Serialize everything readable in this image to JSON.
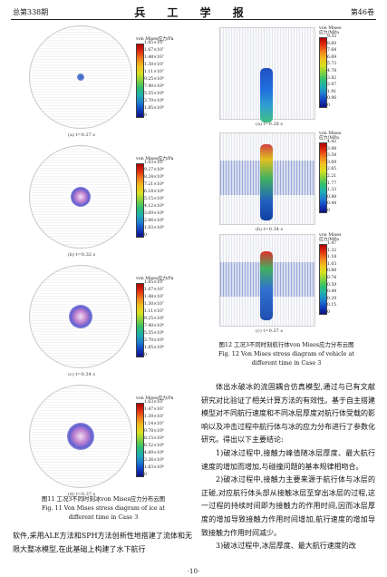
{
  "header": {
    "left": "总第338期",
    "center": "兵 工 学 报",
    "right": "第46卷"
  },
  "legend_title_left": "von Mises应力/Pa",
  "legend_title_right": "von Mises\n应力/MPa",
  "colors": {
    "scale": [
      "#b00000",
      "#e03010",
      "#f08020",
      "#f0c020",
      "#d8e020",
      "#80d040",
      "#30c070",
      "#20b0b0",
      "#2080d0",
      "#1040c0",
      "#101080"
    ]
  },
  "left_figs": [
    {
      "caption": "(a) t=0.27 s",
      "ticks": [
        "1.85×10⁷",
        "1.67×10⁷",
        "1.48×10⁷",
        "1.30×10⁷",
        "1.11×10⁷",
        "9.25×10⁶",
        "7.40×10⁶",
        "5.55×10⁶",
        "3.70×10⁶",
        "1.85×10⁶",
        "0"
      ]
    },
    {
      "caption": "(b) t=0.32 s",
      "ticks": [
        "1.03×10⁷",
        "9.27×10⁶",
        "8.24×10⁶",
        "7.21×10⁶",
        "6.18×10⁶",
        "5.15×10⁶",
        "4.12×10⁶",
        "3.09×10⁶",
        "2.06×10⁶",
        "1.03×10⁶",
        "0"
      ]
    },
    {
      "caption": "(c) t=0.34 s",
      "ticks": [
        "1.85×10⁷",
        "1.67×10⁷",
        "1.48×10⁷",
        "1.30×10⁷",
        "1.11×10⁷",
        "9.25×10⁶",
        "7.40×10⁶",
        "5.55×10⁶",
        "3.70×10⁶",
        "1.85×10⁶",
        "0"
      ]
    },
    {
      "caption": "(d) t=0.37 s",
      "ticks": [
        "1.63×10⁷",
        "1.47×10⁷",
        "1.30×10⁷",
        "1.14×10⁷",
        "9.78×10⁶",
        "8.15×10⁶",
        "6.52×10⁶",
        "4.89×10⁶",
        "3.26×10⁶",
        "1.63×10⁶",
        "0"
      ]
    }
  ],
  "right_figs": [
    {
      "caption": "(a) t=0.28 s",
      "ticks": [
        "9.55",
        "8.60",
        "7.64",
        "6.69",
        "5.73",
        "4.78",
        "3.82",
        "2.87",
        "1.91",
        "0.96",
        "0"
      ]
    },
    {
      "caption": "(b) t=0.34 s",
      "ticks": [
        "4.42",
        "3.98",
        "3.54",
        "3.09",
        "2.65",
        "2.21",
        "1.77",
        "1.33",
        "0.88",
        "0.44",
        "0"
      ]
    },
    {
      "caption": "(c) t=0.37 s",
      "ticks": [
        "1.47",
        "1.32",
        "1.18",
        "1.03",
        "0.88",
        "0.74",
        "0.59",
        "0.44",
        "0.29",
        "0.15",
        "0"
      ]
    }
  ],
  "fig11": {
    "cn": "图11  工况3不同时刻冰von Mises应力分布云图",
    "en1": "Fig. 11    Von Mises stress diagram of ice at",
    "en2": "different time in Case 3"
  },
  "fig12": {
    "cn": "图12  工况3不同时刻航行体von Mises应力分布云图",
    "en1": "Fig. 12    Von Mises stress diagram of vehicle at",
    "en2": "different time in Case 3"
  },
  "left_text": "软件,采用ALE方法和SPH方法创新性地搭建了流体和无限大整冰模型,在此基础上构建了水下航行",
  "right_text": [
    "体出水破冰的流固耦合仿真模型,通过与已有文献研究对比验证了相关计算方法的有效性。基于自主搭建模型对不同航行速度和不同冰层厚度对航行体受载的影响以及冲击过程中航行体与冰的应力分布进行了参数化研究。得出以下主要结论:",
    "1)破冰过程中,接触力峰值随冰层厚度、最大航行速度的增加而增加,与碰撞问题的基本规律相吻合。",
    "2)破冰过程中,接触力主要来源于航行体与冰层的正碰,对应航行体头部从接触冰层至穿出冰层的过程,这一过程的持续时间即为接触力的作用时间,因而冰层厚度的增加导致接触力作用时间增加,航行速度的增加导致接触力作用时间减少。",
    "3)破冰过程中,冰层厚度、最大航行速度的改"
  ],
  "footer": "·10·"
}
